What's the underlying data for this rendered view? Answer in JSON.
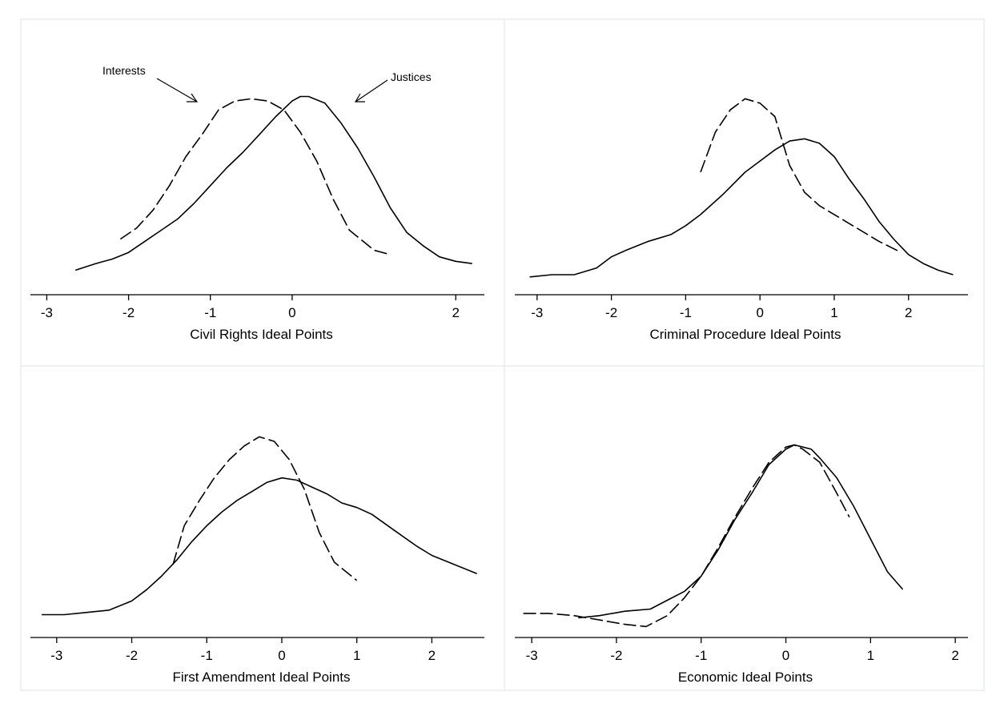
{
  "annotations": {
    "interests": "Interests",
    "justices": "Justices"
  },
  "chart_data": [
    {
      "type": "line",
      "xlabel": "Civil Rights Ideal Points",
      "xticks": [
        "-3",
        "-2",
        "-1",
        "0",
        "2"
      ],
      "xtick_values": [
        -3,
        -2,
        -1,
        0,
        2
      ],
      "xlim": [
        -3.2,
        2.35
      ],
      "ylim": [
        0,
        1.05
      ],
      "grid": false,
      "series": [
        {
          "name": "Justices",
          "style": "solid",
          "x": [
            -2.65,
            -2.4,
            -2.2,
            -2.0,
            -1.8,
            -1.6,
            -1.4,
            -1.2,
            -1.0,
            -0.8,
            -0.6,
            -0.4,
            -0.2,
            0.0,
            0.1,
            0.2,
            0.4,
            0.6,
            0.8,
            1.0,
            1.2,
            1.4,
            1.6,
            1.8,
            2.0,
            2.2
          ],
          "y": [
            0.11,
            0.14,
            0.16,
            0.19,
            0.24,
            0.29,
            0.34,
            0.41,
            0.49,
            0.57,
            0.64,
            0.72,
            0.8,
            0.87,
            0.89,
            0.89,
            0.86,
            0.77,
            0.66,
            0.53,
            0.39,
            0.28,
            0.22,
            0.17,
            0.15,
            0.14
          ]
        },
        {
          "name": "Interests",
          "style": "dashed",
          "x": [
            -2.1,
            -1.9,
            -1.7,
            -1.5,
            -1.3,
            -1.1,
            -0.9,
            -0.7,
            -0.5,
            -0.3,
            -0.1,
            0.1,
            0.3,
            0.5,
            0.7,
            0.9,
            1.0,
            1.2
          ],
          "y": [
            0.25,
            0.3,
            0.38,
            0.49,
            0.62,
            0.72,
            0.83,
            0.87,
            0.88,
            0.87,
            0.83,
            0.73,
            0.6,
            0.43,
            0.29,
            0.23,
            0.2,
            0.18
          ]
        }
      ]
    },
    {
      "type": "line",
      "xlabel": "Criminal Procedure Ideal Points",
      "xticks": [
        "-3",
        "-2",
        "-1",
        "0",
        "1",
        "2"
      ],
      "xtick_values": [
        -3,
        -2,
        -1,
        0,
        1,
        2
      ],
      "xlim": [
        -3.3,
        2.8
      ],
      "ylim": [
        0,
        1.05
      ],
      "grid": false,
      "series": [
        {
          "name": "Justices",
          "style": "solid",
          "x": [
            -3.1,
            -2.8,
            -2.5,
            -2.2,
            -2.0,
            -1.8,
            -1.5,
            -1.2,
            -1.0,
            -0.8,
            -0.5,
            -0.2,
            0.0,
            0.2,
            0.4,
            0.6,
            0.8,
            1.0,
            1.2,
            1.4,
            1.6,
            1.8,
            2.0,
            2.2,
            2.4,
            2.6
          ],
          "y": [
            0.08,
            0.09,
            0.09,
            0.12,
            0.17,
            0.2,
            0.24,
            0.27,
            0.31,
            0.36,
            0.45,
            0.55,
            0.6,
            0.65,
            0.69,
            0.7,
            0.68,
            0.62,
            0.52,
            0.43,
            0.33,
            0.25,
            0.18,
            0.14,
            0.11,
            0.09
          ]
        },
        {
          "name": "Interests",
          "style": "dashed",
          "x": [
            -0.8,
            -0.6,
            -0.4,
            -0.2,
            0.0,
            0.2,
            0.4,
            0.6,
            0.8,
            1.0,
            1.3,
            1.6,
            1.9
          ],
          "y": [
            0.55,
            0.73,
            0.83,
            0.88,
            0.86,
            0.8,
            0.58,
            0.46,
            0.4,
            0.36,
            0.3,
            0.24,
            0.19
          ]
        }
      ]
    },
    {
      "type": "line",
      "xlabel": "First Amendment Ideal Points",
      "xticks": [
        "-3",
        "-2",
        "-1",
        "0",
        "1",
        "2"
      ],
      "xtick_values": [
        -3,
        -2,
        -1,
        0,
        1,
        2
      ],
      "xlim": [
        -3.35,
        2.7
      ],
      "ylim": [
        0,
        1.05
      ],
      "grid": false,
      "series": [
        {
          "name": "Justices",
          "style": "solid",
          "x": [
            -3.2,
            -2.9,
            -2.6,
            -2.3,
            -2.0,
            -1.8,
            -1.6,
            -1.4,
            -1.2,
            -1.0,
            -0.8,
            -0.6,
            -0.4,
            -0.2,
            0.0,
            0.2,
            0.4,
            0.6,
            0.8,
            1.0,
            1.2,
            1.5,
            1.8,
            2.0,
            2.3,
            2.6
          ],
          "y": [
            0.1,
            0.1,
            0.11,
            0.12,
            0.16,
            0.21,
            0.27,
            0.34,
            0.42,
            0.49,
            0.55,
            0.6,
            0.64,
            0.68,
            0.7,
            0.69,
            0.66,
            0.63,
            0.59,
            0.57,
            0.54,
            0.47,
            0.4,
            0.36,
            0.32,
            0.28
          ]
        },
        {
          "name": "Interests",
          "style": "dashed",
          "x": [
            -1.45,
            -1.3,
            -1.1,
            -0.9,
            -0.7,
            -0.5,
            -0.3,
            -0.1,
            0.1,
            0.3,
            0.5,
            0.7,
            0.85,
            1.0
          ],
          "y": [
            0.32,
            0.49,
            0.6,
            0.7,
            0.78,
            0.84,
            0.88,
            0.86,
            0.78,
            0.65,
            0.46,
            0.33,
            0.29,
            0.25
          ]
        }
      ]
    },
    {
      "type": "line",
      "xlabel": "Economic Ideal Points",
      "xticks": [
        "-3",
        "-2",
        "-1",
        "0",
        "1",
        "2"
      ],
      "xtick_values": [
        -3,
        -2,
        -1,
        0,
        1,
        2
      ],
      "xlim": [
        -3.2,
        2.15
      ],
      "ylim": [
        0,
        1.05
      ],
      "grid": false,
      "series": [
        {
          "name": "Justices",
          "style": "solid",
          "x": [
            -2.45,
            -2.2,
            -1.9,
            -1.6,
            -1.4,
            -1.2,
            -1.0,
            -0.8,
            -0.6,
            -0.4,
            -0.2,
            0.0,
            0.1,
            0.2,
            0.3,
            0.4,
            0.6,
            0.8,
            1.0,
            1.2,
            1.38
          ],
          "y": [
            0.09,
            0.1,
            0.12,
            0.13,
            0.17,
            0.21,
            0.28,
            0.4,
            0.54,
            0.66,
            0.79,
            0.86,
            0.88,
            0.87,
            0.86,
            0.82,
            0.73,
            0.6,
            0.45,
            0.3,
            0.22
          ]
        },
        {
          "name": "Interests",
          "style": "dashed",
          "x": [
            -3.1,
            -2.8,
            -2.5,
            -2.2,
            -1.9,
            -1.65,
            -1.4,
            -1.2,
            -1.0,
            -0.8,
            -0.6,
            -0.4,
            -0.2,
            0.0,
            0.1,
            0.2,
            0.4,
            0.6,
            0.75
          ],
          "y": [
            0.11,
            0.11,
            0.1,
            0.08,
            0.06,
            0.05,
            0.1,
            0.18,
            0.28,
            0.41,
            0.55,
            0.68,
            0.8,
            0.87,
            0.88,
            0.86,
            0.8,
            0.66,
            0.55
          ]
        }
      ]
    }
  ]
}
